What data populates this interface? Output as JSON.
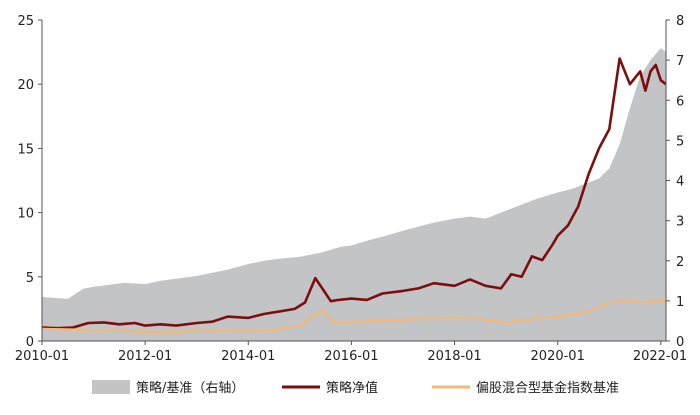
{
  "chart_data": {
    "type": "line",
    "x_unit": "year",
    "xlim": [
      2010.0,
      2022.1
    ],
    "x_ticks": [
      {
        "value": 2010.0,
        "label": "2010-01"
      },
      {
        "value": 2012.0,
        "label": "2012-01"
      },
      {
        "value": 2014.0,
        "label": "2014-01"
      },
      {
        "value": 2016.0,
        "label": "2016-01"
      },
      {
        "value": 2018.0,
        "label": "2018-01"
      },
      {
        "value": 2020.0,
        "label": "2020-01"
      },
      {
        "value": 2022.0,
        "label": "2022-01"
      }
    ],
    "left_axis": {
      "ylim": [
        0,
        25
      ],
      "ticks": [
        0,
        5,
        10,
        15,
        20,
        25
      ]
    },
    "right_axis": {
      "ylim": [
        0,
        8
      ],
      "ticks": [
        0,
        1,
        2,
        3,
        4,
        5,
        6,
        7,
        8
      ]
    },
    "grid": false,
    "legend_position": "bottom",
    "colors": {
      "area": "#c3c4c6",
      "nav": "#7b0f0f",
      "benchmark": "#f4b777"
    },
    "series": [
      {
        "name": "策略/基准（右轴）",
        "kind": "area",
        "axis": "right",
        "x": [
          2010.0,
          2010.2,
          2010.5,
          2010.8,
          2011.0,
          2011.3,
          2011.6,
          2012.0,
          2012.3,
          2012.6,
          2013.0,
          2013.3,
          2013.6,
          2014.0,
          2014.3,
          2014.6,
          2015.0,
          2015.4,
          2015.8,
          2016.0,
          2016.3,
          2016.6,
          2017.0,
          2017.3,
          2017.6,
          2018.0,
          2018.3,
          2018.6,
          2019.0,
          2019.3,
          2019.6,
          2020.0,
          2020.3,
          2020.6,
          2020.8,
          2021.0,
          2021.2,
          2021.4,
          2021.6,
          2021.8,
          2022.0,
          2022.1
        ],
        "values": [
          1.1,
          1.08,
          1.05,
          1.3,
          1.35,
          1.4,
          1.45,
          1.42,
          1.5,
          1.55,
          1.62,
          1.7,
          1.78,
          1.92,
          2.0,
          2.05,
          2.1,
          2.2,
          2.35,
          2.38,
          2.5,
          2.6,
          2.75,
          2.85,
          2.95,
          3.05,
          3.1,
          3.05,
          3.25,
          3.4,
          3.55,
          3.7,
          3.8,
          3.95,
          4.05,
          4.3,
          4.9,
          5.8,
          6.6,
          7.0,
          7.3,
          7.2
        ]
      },
      {
        "name": "策略净值",
        "kind": "line",
        "axis": "left",
        "x": [
          2010.0,
          2010.3,
          2010.6,
          2010.9,
          2011.2,
          2011.5,
          2011.8,
          2012.0,
          2012.3,
          2012.6,
          2013.0,
          2013.3,
          2013.6,
          2014.0,
          2014.3,
          2014.6,
          2014.9,
          2015.1,
          2015.3,
          2015.45,
          2015.6,
          2015.75,
          2016.0,
          2016.3,
          2016.6,
          2017.0,
          2017.3,
          2017.6,
          2018.0,
          2018.3,
          2018.6,
          2018.9,
          2019.1,
          2019.3,
          2019.5,
          2019.7,
          2019.9,
          2020.0,
          2020.2,
          2020.4,
          2020.6,
          2020.8,
          2021.0,
          2021.2,
          2021.4,
          2021.6,
          2021.7,
          2021.8,
          2021.9,
          2022.0,
          2022.1
        ],
        "values": [
          1.05,
          1.0,
          1.05,
          1.4,
          1.45,
          1.3,
          1.4,
          1.2,
          1.3,
          1.2,
          1.4,
          1.5,
          1.9,
          1.8,
          2.1,
          2.3,
          2.5,
          3.0,
          4.9,
          4.0,
          3.1,
          3.2,
          3.3,
          3.2,
          3.7,
          3.9,
          4.1,
          4.5,
          4.3,
          4.8,
          4.3,
          4.1,
          5.2,
          5.0,
          6.6,
          6.3,
          7.5,
          8.2,
          9.0,
          10.5,
          13.0,
          15.0,
          16.5,
          22.0,
          20.0,
          21.0,
          19.5,
          21.0,
          21.5,
          20.3,
          20.0
        ]
      },
      {
        "name": "偏股混合型基金指数基准",
        "kind": "line",
        "axis": "left",
        "x": [
          2010.0,
          2010.5,
          2011.0,
          2011.5,
          2012.0,
          2012.5,
          2013.0,
          2013.5,
          2014.0,
          2014.5,
          2015.0,
          2015.3,
          2015.45,
          2015.6,
          2015.8,
          2016.0,
          2016.5,
          2017.0,
          2017.5,
          2018.0,
          2018.5,
          2019.0,
          2019.5,
          2020.0,
          2020.5,
          2020.8,
          2021.0,
          2021.2,
          2021.4,
          2021.6,
          2021.8,
          2022.0,
          2022.1
        ],
        "values": [
          0.95,
          0.9,
          0.85,
          0.8,
          0.72,
          0.7,
          0.8,
          0.82,
          0.8,
          0.85,
          1.2,
          2.0,
          2.4,
          1.6,
          1.4,
          1.5,
          1.55,
          1.65,
          1.75,
          1.8,
          1.7,
          1.45,
          1.7,
          1.9,
          2.2,
          2.6,
          3.0,
          3.1,
          3.2,
          3.0,
          3.1,
          3.15,
          3.05
        ]
      }
    ],
    "legend": [
      {
        "label": "策略/基准（右轴）",
        "kind": "area"
      },
      {
        "label": "策略净值",
        "kind": "line"
      },
      {
        "label": "偏股混合型基金指数基准",
        "kind": "line"
      }
    ]
  }
}
